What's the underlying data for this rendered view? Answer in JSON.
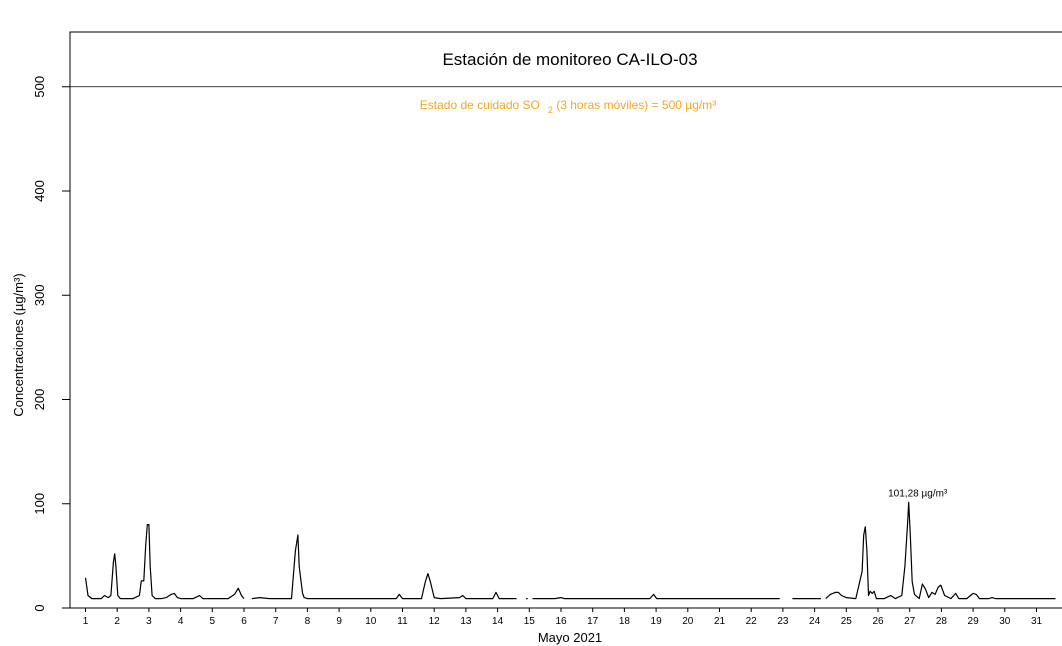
{
  "chart_data": {
    "type": "line",
    "title": "Estación de monitoreo  CA-ILO-03",
    "xlabel": "Mayo 2021",
    "ylabel": "Concentraciones (µg/m³)",
    "ylim": [
      0,
      500
    ],
    "y_ticks": [
      0,
      100,
      200,
      300,
      400,
      500
    ],
    "x_ticks": [
      "1",
      "2",
      "3",
      "4",
      "5",
      "6",
      "7",
      "8",
      "9",
      "10",
      "11",
      "12",
      "13",
      "14",
      "15",
      "16",
      "17",
      "18",
      "19",
      "20",
      "21",
      "22",
      "23",
      "24",
      "25",
      "26",
      "27",
      "28",
      "29",
      "30",
      "31"
    ],
    "grid": false,
    "threshold": {
      "value": 500,
      "label": "Estado de cuidado SO",
      "label_sub": "2",
      "label_rest": " (3 horas móviles) = 500 µg/m³",
      "color": "#f5a623"
    },
    "annotation": {
      "text": "101,28 µg/m³",
      "x": 27.0,
      "y": 101.28
    },
    "line_color": "#000000",
    "series": [
      {
        "values": [
          [
            1.0,
            29
          ],
          [
            1.08,
            12
          ],
          [
            1.2,
            9
          ],
          [
            1.5,
            9
          ],
          [
            1.6,
            12
          ],
          [
            1.72,
            10
          ],
          [
            1.8,
            12
          ],
          [
            1.88,
            44
          ],
          [
            1.92,
            52
          ],
          [
            1.96,
            40
          ],
          [
            2.02,
            12
          ],
          [
            2.1,
            9
          ],
          [
            2.5,
            9
          ],
          [
            2.7,
            12
          ],
          [
            2.76,
            26
          ],
          [
            2.84,
            26
          ],
          [
            2.9,
            60
          ],
          [
            2.95,
            80
          ],
          [
            3.0,
            80
          ],
          [
            3.04,
            40
          ],
          [
            3.1,
            12
          ],
          [
            3.2,
            9
          ],
          [
            3.4,
            9
          ],
          [
            3.55,
            10
          ],
          [
            3.7,
            13
          ],
          [
            3.8,
            14
          ],
          [
            3.9,
            10
          ],
          [
            4.0,
            9
          ],
          [
            4.4,
            9
          ],
          [
            4.6,
            12
          ],
          [
            4.7,
            9
          ],
          [
            5.0,
            9
          ],
          [
            5.5,
            9
          ],
          [
            5.7,
            13
          ],
          [
            5.82,
            19
          ],
          [
            5.92,
            12
          ],
          [
            6.0,
            9
          ],
          null,
          [
            6.25,
            9
          ],
          [
            6.5,
            10
          ],
          [
            6.8,
            9
          ],
          [
            7.5,
            9
          ],
          [
            7.62,
            55
          ],
          [
            7.7,
            70
          ],
          [
            7.74,
            40
          ],
          [
            7.8,
            25
          ],
          [
            7.85,
            14
          ],
          [
            7.9,
            10
          ],
          [
            8.0,
            9
          ],
          [
            9.0,
            9
          ],
          [
            10.0,
            9
          ],
          [
            10.8,
            9
          ],
          [
            10.9,
            13
          ],
          [
            11.0,
            9
          ],
          [
            11.6,
            9
          ],
          [
            11.72,
            25
          ],
          [
            11.8,
            33
          ],
          [
            11.88,
            25
          ],
          [
            12.0,
            10
          ],
          [
            12.2,
            9
          ],
          [
            12.8,
            10
          ],
          [
            12.9,
            12
          ],
          [
            13.0,
            9
          ],
          [
            13.5,
            9
          ],
          [
            13.85,
            9
          ],
          [
            13.95,
            15
          ],
          [
            14.05,
            9
          ],
          [
            14.6,
            9
          ],
          null,
          [
            14.9,
            9
          ],
          [
            14.95,
            9
          ],
          null,
          [
            15.1,
            9
          ],
          [
            15.8,
            9
          ],
          [
            16.0,
            10
          ],
          [
            16.1,
            9
          ],
          [
            16.8,
            9
          ],
          [
            17.5,
            9
          ],
          [
            18.4,
            9
          ],
          [
            18.8,
            9
          ],
          [
            18.92,
            13
          ],
          [
            19.02,
            9
          ],
          [
            19.5,
            9
          ],
          [
            20.0,
            9
          ],
          [
            20.5,
            9
          ],
          [
            21.0,
            9
          ],
          [
            21.5,
            9
          ],
          [
            22.0,
            9
          ],
          [
            22.5,
            9
          ],
          [
            22.9,
            9
          ],
          null,
          [
            23.3,
            9
          ],
          [
            23.6,
            9
          ],
          [
            24.2,
            9
          ],
          null,
          [
            24.35,
            9
          ],
          [
            24.5,
            13
          ],
          [
            24.65,
            15
          ],
          [
            24.75,
            15
          ],
          [
            24.85,
            12
          ],
          [
            25.0,
            10
          ],
          [
            25.3,
            9
          ],
          [
            25.5,
            35
          ],
          [
            25.55,
            70
          ],
          [
            25.6,
            78
          ],
          [
            25.65,
            55
          ],
          [
            25.7,
            12
          ],
          [
            25.75,
            16
          ],
          [
            25.82,
            14
          ],
          [
            25.88,
            16
          ],
          [
            25.95,
            9
          ],
          [
            26.2,
            9
          ],
          [
            26.4,
            12
          ],
          [
            26.55,
            9
          ],
          [
            26.75,
            12
          ],
          [
            26.85,
            40
          ],
          [
            26.93,
            80
          ],
          [
            26.97,
            101.28
          ],
          [
            27.02,
            70
          ],
          [
            27.08,
            25
          ],
          [
            27.15,
            13
          ],
          [
            27.3,
            9
          ],
          [
            27.4,
            23
          ],
          [
            27.5,
            18
          ],
          [
            27.6,
            10
          ],
          [
            27.7,
            15
          ],
          [
            27.8,
            13
          ],
          [
            27.9,
            20
          ],
          [
            27.98,
            22
          ],
          [
            28.1,
            12
          ],
          [
            28.3,
            9
          ],
          [
            28.45,
            14
          ],
          [
            28.55,
            9
          ],
          [
            28.8,
            9
          ],
          [
            29.0,
            14
          ],
          [
            29.1,
            13
          ],
          [
            29.2,
            9
          ],
          [
            29.5,
            9
          ],
          [
            29.6,
            10
          ],
          [
            29.7,
            9
          ],
          [
            31.6,
            9
          ]
        ]
      }
    ]
  }
}
